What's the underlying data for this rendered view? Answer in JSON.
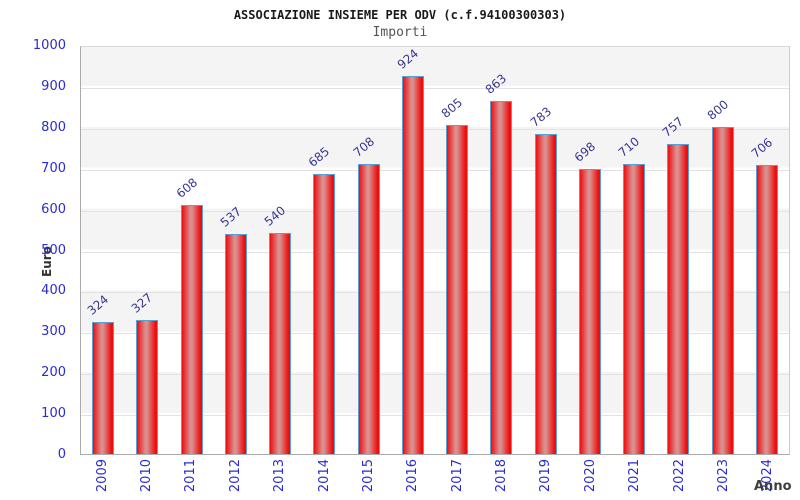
{
  "header": {
    "title": "ASSOCIAZIONE INSIEME PER ODV (c.f.94100300303)",
    "subtitle": "Importi"
  },
  "chart_data": {
    "type": "bar",
    "title": "ASSOCIAZIONE INSIEME PER ODV (c.f.94100300303)",
    "subtitle": "Importi",
    "xlabel": "Anno",
    "ylabel": "Euro",
    "categories": [
      "2009",
      "2010",
      "2011",
      "2012",
      "2013",
      "2014",
      "2015",
      "2016",
      "2017",
      "2018",
      "2019",
      "2020",
      "2021",
      "2022",
      "2023",
      "2024"
    ],
    "values": [
      324,
      327,
      608,
      537,
      540,
      685,
      708,
      924,
      805,
      863,
      783,
      698,
      710,
      757,
      800,
      706
    ],
    "ylim": [
      0,
      1000
    ],
    "yticks": [
      0,
      100,
      200,
      300,
      400,
      500,
      600,
      700,
      800,
      900,
      1000
    ],
    "grid": "horizontal gridlines with alternating background bands",
    "legend": "none",
    "value_labels": "shown above each bar, rotated"
  },
  "colors": {
    "bar_fill_edge": "#ed0e0e",
    "bar_fill_center": "#db9090",
    "bar_border": "#5a9fd4",
    "axis_tick_label": "#2b2bd0",
    "bar_value_label": "#383890",
    "band_gray": "#f4f4f4",
    "gridline": "#e2e2e2",
    "title_text": "#1a1a1a",
    "subtitle_text": "#555555",
    "axis_title_text": "#333333",
    "background": "#ffffff"
  }
}
